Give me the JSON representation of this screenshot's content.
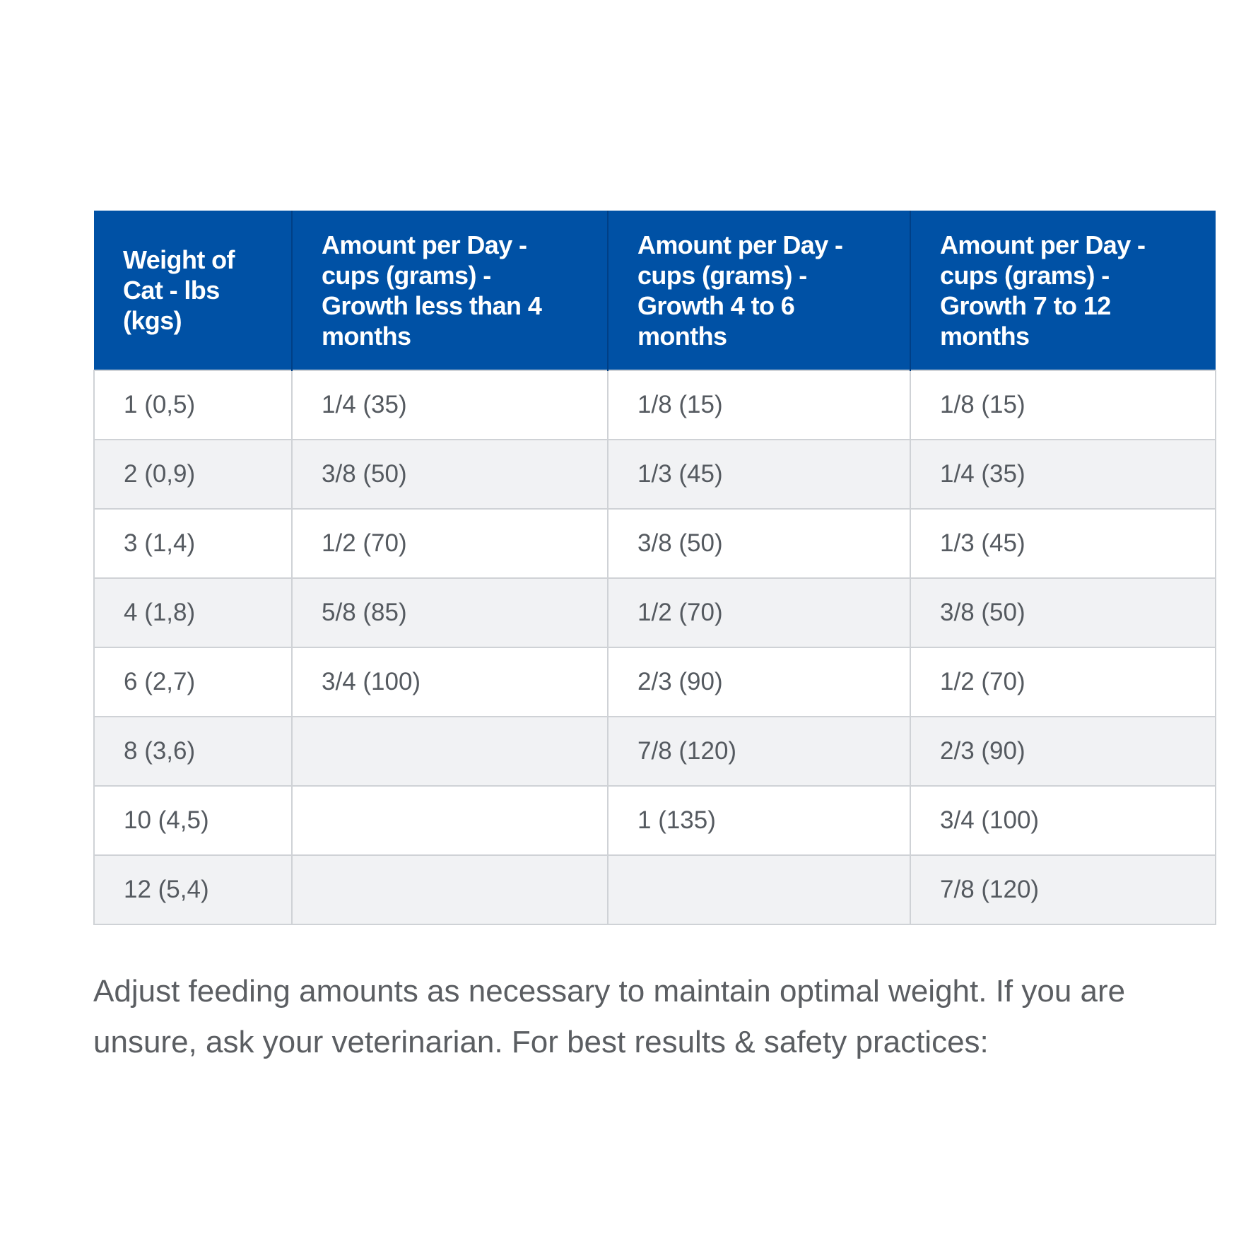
{
  "feeding_table": {
    "headers": [
      "Weight of Cat - lbs (kgs)",
      "Amount per Day - cups (grams) - Growth less than 4 months",
      "Amount per Day - cups (grams) - Growth 4 to 6 months",
      "Amount per Day - cups (grams) - Growth 7 to 12 months"
    ],
    "rows": [
      [
        "1 (0,5)",
        "1/4 (35)",
        "1/8 (15)",
        "1/8 (15)"
      ],
      [
        "2 (0,9)",
        "3/8 (50)",
        "1/3 (45)",
        "1/4 (35)"
      ],
      [
        "3 (1,4)",
        "1/2 (70)",
        "3/8 (50)",
        "1/3 (45)"
      ],
      [
        "4 (1,8)",
        "5/8 (85)",
        "1/2 (70)",
        "3/8 (50)"
      ],
      [
        "6 (2,7)",
        "3/4 (100)",
        "2/3 (90)",
        "1/2 (70)"
      ],
      [
        "8 (3,6)",
        "",
        "7/8 (120)",
        "2/3 (90)"
      ],
      [
        "10 (4,5)",
        "",
        "1 (135)",
        "3/4 (100)"
      ],
      [
        "12 (5,4)",
        "",
        "",
        "7/8 (120)"
      ]
    ]
  },
  "note": "Adjust feeding amounts as necessary to maintain optimal weight. If you are unsure, ask your veterinarian. For best results & safety practices:",
  "colors": {
    "header_bg": "#0051a5",
    "header_text": "#ffffff",
    "stripe_bg": "#f1f2f4",
    "cell_text": "#555a60",
    "border": "#cfd2d6"
  }
}
